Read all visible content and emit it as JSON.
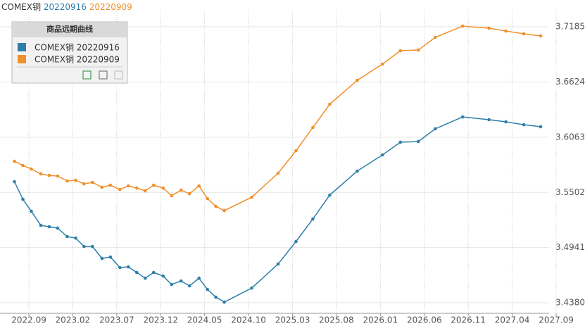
{
  "chart_data": {
    "type": "line",
    "title": "COMEX铜",
    "title_dates": [
      "20220916",
      "20220909"
    ],
    "legend_title": "商品远期曲线",
    "legend": "top-left",
    "grid": true,
    "xlim": [
      2022.393,
      2027.6
    ],
    "ylim": [
      3.4273,
      3.735
    ],
    "xticks": [
      {
        "value": 2022.667,
        "label": "2022.09"
      },
      {
        "value": 2023.083,
        "label": "2023.02"
      },
      {
        "value": 2023.5,
        "label": "2023.07"
      },
      {
        "value": 2023.917,
        "label": "2023.12"
      },
      {
        "value": 2024.333,
        "label": "2024.05"
      },
      {
        "value": 2024.75,
        "label": "2024.10"
      },
      {
        "value": 2025.167,
        "label": "2025.03"
      },
      {
        "value": 2025.583,
        "label": "2025.08"
      },
      {
        "value": 2026.0,
        "label": "2026.01"
      },
      {
        "value": 2026.417,
        "label": "2026.06"
      },
      {
        "value": 2026.833,
        "label": "2026.11"
      },
      {
        "value": 2027.25,
        "label": "2027.04"
      },
      {
        "value": 2027.667,
        "label": "2027.09"
      }
    ],
    "yticks": [
      {
        "value": 3.438,
        "label": "3.4380"
      },
      3.4941,
      3.5502,
      3.6063,
      3.6624,
      3.7185
    ],
    "x": [
      2022.53,
      2022.61,
      2022.69,
      2022.78,
      2022.86,
      2022.94,
      2023.03,
      2023.11,
      2023.19,
      2023.27,
      2023.36,
      2023.44,
      2023.53,
      2023.61,
      2023.69,
      2023.77,
      2023.85,
      2023.94,
      2024.02,
      2024.11,
      2024.19,
      2024.28,
      2024.36,
      2024.44,
      2024.52,
      2024.78,
      2025.03,
      2025.2,
      2025.36,
      2025.52,
      2025.78,
      2026.02,
      2026.19,
      2026.36,
      2026.52,
      2026.78,
      2027.03,
      2027.19,
      2027.36,
      2027.52
    ],
    "series": [
      {
        "name": "COMEX铜 20220916",
        "color": "#2e7fa8",
        "values": [
          3.5611,
          3.5432,
          3.531,
          3.5167,
          3.5153,
          3.5139,
          3.5053,
          3.5038,
          3.4952,
          3.4952,
          3.4831,
          3.4845,
          3.4738,
          3.4745,
          3.4688,
          3.463,
          3.4688,
          3.4652,
          3.4566,
          3.4602,
          3.4552,
          3.463,
          3.4516,
          3.4437,
          3.4387,
          3.453,
          3.4774,
          3.5003,
          3.5232,
          3.5475,
          3.5718,
          3.5883,
          3.6012,
          3.6019,
          3.6148,
          3.6269,
          3.6241,
          3.6219,
          3.619,
          3.6169
        ]
      },
      {
        "name": "COMEX铜 20220909",
        "color": "#f0902a",
        "values": [
          3.5818,
          3.5775,
          3.574,
          3.569,
          3.5675,
          3.5668,
          3.5618,
          3.5625,
          3.5589,
          3.5604,
          3.5554,
          3.5575,
          3.5532,
          3.5568,
          3.5546,
          3.5518,
          3.5575,
          3.5546,
          3.5468,
          3.5525,
          3.5489,
          3.5568,
          3.5439,
          3.536,
          3.5317,
          3.5453,
          3.5697,
          3.5926,
          3.6162,
          3.6398,
          3.6641,
          3.6806,
          3.6942,
          3.6949,
          3.7078,
          3.7192,
          3.7171,
          3.7142,
          3.7114,
          3.7092
        ]
      }
    ]
  }
}
